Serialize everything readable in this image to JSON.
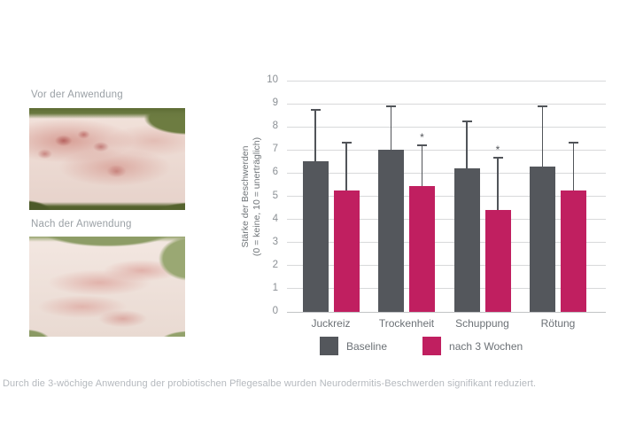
{
  "photos": {
    "before_label": "Vor der Anwendung",
    "after_label": "Nach der Anwendung"
  },
  "chart_data": {
    "type": "bar",
    "title": "",
    "ylabel_line1": "Stärke der Beschwerden",
    "ylabel_line2": "(0 = keine, 10 = unerträglich)",
    "categories": [
      "Juckreiz",
      "Trockenheit",
      "Schuppung",
      "Rötung"
    ],
    "series": [
      {
        "name": "Baseline",
        "color": "#54575c",
        "values": [
          6.5,
          7.0,
          6.2,
          6.3
        ],
        "error_top": [
          8.75,
          8.9,
          8.25,
          8.9
        ],
        "significance": [
          false,
          false,
          false,
          false
        ]
      },
      {
        "name": "nach 3 Wochen",
        "color": "#c01f60",
        "values": [
          5.25,
          5.45,
          4.4,
          5.25
        ],
        "error_top": [
          7.3,
          7.2,
          6.65,
          7.3
        ],
        "significance": [
          false,
          true,
          true,
          false
        ]
      }
    ],
    "ylim": [
      0,
      10
    ],
    "yticks": [
      0,
      1,
      2,
      3,
      4,
      5,
      6,
      7,
      8,
      9,
      10
    ],
    "grid": true,
    "legend_position": "bottom",
    "significance_marker": "*"
  },
  "caption": {
    "text": "Durch die 3-wöchige Anwendung der probiotischen Pflegesalbe wurden Neurodermitis-Beschwerden signifikant reduziert."
  },
  "colors": {
    "baseline_bar": "#54575c",
    "after_bar": "#c01f60",
    "grid_line": "#d8d9da",
    "error_bar": "#515459",
    "axis_tick_text": "#8b9095",
    "category_text": "#6c7176",
    "caption_text": "#b5b9be",
    "photo_label_text": "#9aa0a5"
  }
}
